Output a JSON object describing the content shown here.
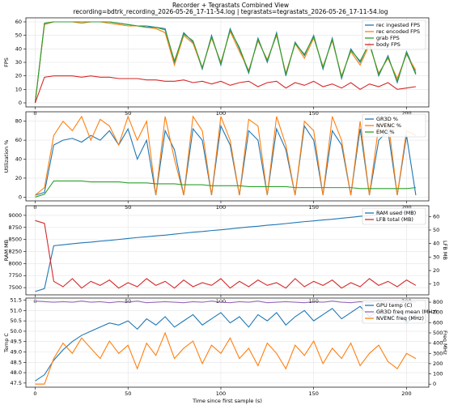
{
  "title": "Recorder + Tegrastats Combined View",
  "subtitle": "recording=bdtrk_recording_2026-05-26_17-11-54.log | tegrastats=tegrastats_2026-05-26_17-11-54.log",
  "chart_data": [
    {
      "type": "line",
      "ylabel": "FPS",
      "grid": true,
      "legend": "upper right",
      "xlim": [
        -5,
        212
      ],
      "xticks": [
        0,
        50,
        100,
        150,
        200
      ],
      "ylim": [
        -3,
        63
      ],
      "yticks": [
        0,
        10,
        20,
        30,
        40,
        50,
        60
      ],
      "x": [
        0,
        5,
        10,
        15,
        20,
        25,
        30,
        35,
        40,
        45,
        50,
        55,
        60,
        65,
        70,
        75,
        80,
        85,
        90,
        95,
        100,
        105,
        110,
        115,
        120,
        125,
        130,
        135,
        140,
        145,
        150,
        155,
        160,
        165,
        170,
        175,
        180,
        185,
        190,
        195,
        200,
        205
      ],
      "series": [
        {
          "name": "rec ingested FPS",
          "color": "#1f77b4",
          "values": [
            0,
            59,
            60,
            60,
            60,
            60,
            60,
            60,
            60,
            59,
            58,
            57,
            57,
            56,
            55,
            30,
            52,
            45,
            25,
            50,
            28,
            55,
            40,
            22,
            48,
            30,
            52,
            20,
            45,
            35,
            50,
            25,
            48,
            18,
            40,
            30,
            45,
            20,
            35,
            15,
            38,
            22
          ]
        },
        {
          "name": "rec encoded FPS",
          "color": "#ff7f0e",
          "values": [
            0,
            58,
            60,
            60,
            60,
            59,
            60,
            60,
            59,
            58,
            57,
            57,
            56,
            55,
            52,
            28,
            50,
            44,
            26,
            48,
            30,
            53,
            38,
            24,
            46,
            32,
            50,
            22,
            44,
            33,
            48,
            27,
            46,
            20,
            38,
            28,
            43,
            22,
            33,
            18,
            36,
            24
          ]
        },
        {
          "name": "grab FPS",
          "color": "#2ca02c",
          "values": [
            0,
            59,
            60,
            60,
            60,
            60,
            60,
            60,
            60,
            59,
            58,
            57,
            56,
            56,
            54,
            31,
            51,
            46,
            26,
            49,
            29,
            54,
            41,
            23,
            47,
            31,
            51,
            21,
            44,
            36,
            49,
            26,
            47,
            19,
            39,
            31,
            44,
            21,
            34,
            16,
            37,
            21
          ]
        },
        {
          "name": "body FPS",
          "color": "#d62728",
          "values": [
            0,
            19,
            20,
            20,
            20,
            19,
            20,
            19,
            19,
            18,
            18,
            18,
            17,
            17,
            16,
            16,
            17,
            15,
            16,
            14,
            16,
            13,
            15,
            16,
            12,
            15,
            16,
            11,
            15,
            13,
            16,
            12,
            14,
            11,
            15,
            10,
            14,
            12,
            15,
            10,
            11,
            12
          ]
        }
      ]
    },
    {
      "type": "line",
      "ylabel": "Utilization %",
      "grid": true,
      "legend": "upper right",
      "xlim": [
        -5,
        212
      ],
      "xticks": [
        0,
        50,
        100,
        150,
        200
      ],
      "ylim": [
        -4,
        90
      ],
      "yticks": [
        0,
        20,
        40,
        60,
        80
      ],
      "x": [
        0,
        5,
        10,
        15,
        20,
        25,
        30,
        35,
        40,
        45,
        50,
        55,
        60,
        65,
        70,
        75,
        80,
        85,
        90,
        95,
        100,
        105,
        110,
        115,
        120,
        125,
        130,
        135,
        140,
        145,
        150,
        155,
        160,
        165,
        170,
        175,
        180,
        185,
        190,
        195,
        200,
        205
      ],
      "series": [
        {
          "name": "GR3D %",
          "color": "#1f77b4",
          "values": [
            2,
            5,
            55,
            60,
            62,
            58,
            65,
            60,
            70,
            55,
            72,
            40,
            60,
            2,
            70,
            50,
            2,
            72,
            60,
            2,
            75,
            55,
            2,
            70,
            60,
            2,
            72,
            50,
            2,
            75,
            60,
            2,
            70,
            55,
            2,
            72,
            2,
            60,
            70,
            2,
            65,
            2
          ]
        },
        {
          "name": "NVENC %",
          "color": "#ff7f0e",
          "values": [
            2,
            10,
            65,
            80,
            70,
            85,
            60,
            82,
            75,
            55,
            85,
            60,
            80,
            2,
            85,
            40,
            2,
            85,
            70,
            2,
            85,
            60,
            2,
            82,
            75,
            2,
            85,
            55,
            2,
            80,
            70,
            2,
            85,
            60,
            2,
            80,
            2,
            75,
            82,
            2,
            70,
            65
          ]
        },
        {
          "name": "EMC %",
          "color": "#2ca02c",
          "values": [
            0,
            3,
            17,
            17,
            17,
            17,
            16,
            16,
            16,
            16,
            15,
            15,
            15,
            14,
            14,
            14,
            13,
            13,
            13,
            12,
            12,
            12,
            12,
            11,
            11,
            11,
            11,
            11,
            10,
            10,
            10,
            10,
            10,
            10,
            10,
            9,
            9,
            9,
            9,
            9,
            9,
            10
          ]
        }
      ]
    },
    {
      "type": "line",
      "ylabel": "RAM MB",
      "y2label": "LFB MB",
      "grid": true,
      "legend": "upper right",
      "xlim": [
        -5,
        212
      ],
      "xticks": [
        0,
        50,
        100,
        150,
        200
      ],
      "ylim": [
        7350,
        9200
      ],
      "yticks": [
        7500,
        7750,
        8000,
        8250,
        8500,
        8750,
        9000
      ],
      "y2lim": [
        2,
        68
      ],
      "y2ticks": [
        10,
        20,
        30,
        40,
        50,
        60
      ],
      "x": [
        0,
        5,
        10,
        15,
        20,
        25,
        30,
        35,
        40,
        45,
        50,
        55,
        60,
        65,
        70,
        75,
        80,
        85,
        90,
        95,
        100,
        105,
        110,
        115,
        120,
        125,
        130,
        135,
        140,
        145,
        150,
        155,
        160,
        165,
        170,
        175,
        180,
        185,
        190,
        195,
        200,
        205
      ],
      "series": [
        {
          "name": "RAM used (MB)",
          "color": "#1f77b4",
          "values": [
            7420,
            7480,
            8370,
            8390,
            8410,
            8430,
            8445,
            8465,
            8480,
            8500,
            8520,
            8540,
            8555,
            8575,
            8590,
            8610,
            8630,
            8650,
            8665,
            8685,
            8700,
            8720,
            8740,
            8760,
            8775,
            8795,
            8810,
            8830,
            8850,
            8870,
            8885,
            8905,
            8920,
            8940,
            8960,
            8980,
            8995,
            9015,
            9030,
            9050,
            9065,
            9080
          ]
        },
        {
          "name": "LFB total (MB)",
          "color": "#d62728",
          "axis": "y2",
          "values": [
            57,
            55,
            12,
            8,
            14,
            7,
            12,
            9,
            13,
            7,
            11,
            8,
            14,
            9,
            12,
            7,
            13,
            8,
            11,
            9,
            14,
            7,
            12,
            8,
            13,
            9,
            11,
            7,
            14,
            8,
            12,
            9,
            13,
            7,
            11,
            8,
            14,
            9,
            12,
            8,
            13,
            9
          ]
        }
      ]
    },
    {
      "type": "line",
      "ylabel": "Temp C",
      "y2label": "Freq MHz",
      "xlabel": "Time since first sample (s)",
      "grid": true,
      "legend": "upper right",
      "xlim": [
        -5,
        212
      ],
      "xticks": [
        0,
        50,
        100,
        150,
        200
      ],
      "ylim": [
        47.3,
        51.6
      ],
      "yticks": [
        47.5,
        {
          "value": 48,
          "label": "48.0"
        },
        48.5,
        {
          "value": 49,
          "label": "49.0"
        },
        49.5,
        {
          "value": 50,
          "label": "50.0"
        },
        50.5,
        {
          "value": 51,
          "label": "51.0"
        },
        51.5
      ],
      "y2lim": [
        -30,
        840
      ],
      "y2ticks": [
        0,
        100,
        200,
        300,
        400,
        500,
        600,
        700,
        800
      ],
      "x": [
        0,
        5,
        10,
        15,
        20,
        25,
        30,
        35,
        40,
        45,
        50,
        55,
        60,
        65,
        70,
        75,
        80,
        85,
        90,
        95,
        100,
        105,
        110,
        115,
        120,
        125,
        130,
        135,
        140,
        145,
        150,
        155,
        160,
        165,
        170,
        175,
        180,
        185,
        190,
        195,
        200,
        205
      ],
      "series": [
        {
          "name": "GPU temp (C)",
          "color": "#1f77b4",
          "values": [
            47.6,
            47.9,
            48.6,
            49.1,
            49.5,
            49.8,
            50.0,
            50.2,
            50.4,
            50.3,
            50.5,
            50.1,
            50.6,
            50.3,
            50.7,
            50.2,
            50.5,
            50.8,
            50.3,
            50.6,
            50.9,
            50.4,
            50.7,
            50.2,
            50.8,
            50.5,
            50.9,
            50.3,
            50.7,
            51.0,
            50.5,
            50.8,
            51.1,
            50.6,
            50.9,
            51.2,
            50.7,
            51.0,
            50.6,
            50.9,
            50.4,
            50.8
          ]
        },
        {
          "name": "GR3D freq mean (MHz)",
          "color": "#9467bd",
          "axis": "y2",
          "values": [
            810,
            805,
            800,
            805,
            800,
            810,
            800,
            805,
            795,
            805,
            800,
            810,
            795,
            800,
            805,
            800,
            795,
            805,
            800,
            810,
            800,
            795,
            805,
            800,
            810,
            795,
            800,
            805,
            800,
            795,
            805,
            800,
            810,
            800,
            795,
            805,
            800,
            810,
            795,
            800,
            805,
            800
          ]
        },
        {
          "name": "NVENC freq (MHz)",
          "color": "#ff7f0e",
          "axis": "y2",
          "values": [
            0,
            0,
            250,
            400,
            300,
            450,
            350,
            250,
            420,
            300,
            380,
            150,
            400,
            280,
            500,
            250,
            350,
            420,
            200,
            380,
            300,
            450,
            250,
            350,
            180,
            400,
            300,
            150,
            380,
            280,
            420,
            200,
            350,
            250,
            400,
            180,
            300,
            380,
            220,
            150,
            300,
            250
          ]
        }
      ]
    }
  ]
}
